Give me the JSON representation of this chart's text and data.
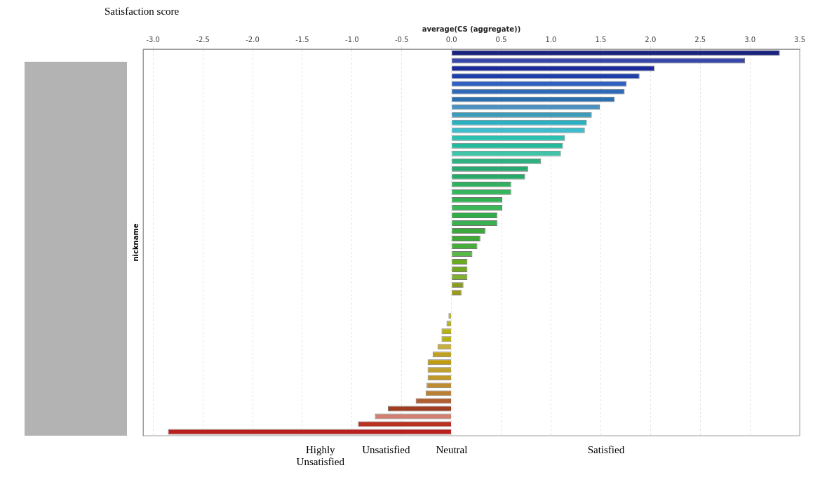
{
  "chart_data": {
    "type": "bar",
    "orientation": "horizontal",
    "title": "Satisfaction score",
    "xlabel": "average(CS (aggregate))",
    "ylabel": "nickname",
    "categories": [
      null,
      null,
      null,
      null,
      null,
      null,
      null,
      null,
      null,
      null,
      null,
      null,
      null,
      null,
      null,
      null,
      null,
      null,
      null,
      null,
      null,
      null,
      null,
      null,
      null,
      null,
      null,
      null,
      null,
      null,
      null,
      null,
      null,
      null,
      null,
      null,
      null,
      null,
      null,
      null,
      null,
      null,
      null,
      null,
      null,
      null,
      null,
      null,
      null,
      null
    ],
    "values": [
      3.3,
      2.95,
      2.04,
      1.89,
      1.76,
      1.74,
      1.64,
      1.49,
      1.41,
      1.36,
      1.34,
      1.14,
      1.12,
      1.1,
      0.9,
      0.77,
      0.74,
      0.6,
      0.6,
      0.51,
      0.51,
      0.46,
      0.46,
      0.34,
      0.29,
      0.26,
      0.21,
      0.16,
      0.16,
      0.16,
      0.12,
      0.1,
      0,
      0,
      -0.03,
      -0.05,
      -0.1,
      -0.1,
      -0.14,
      -0.19,
      -0.24,
      -0.24,
      -0.24,
      -0.25,
      -0.26,
      -0.36,
      -0.64,
      -0.77,
      -0.94,
      -2.85
    ],
    "colors": [
      "#1a237e",
      "#3949ab",
      "#1a2a9a",
      "#1f3fa8",
      "#3060c0",
      "#2f6ab8",
      "#2a70b0",
      "#4a90c0",
      "#3a9cb8",
      "#2ab0c0",
      "#40bccc",
      "#2cc0b0",
      "#22b89a",
      "#40c4a8",
      "#30b080",
      "#2aa870",
      "#28a868",
      "#30b060",
      "#34b45c",
      "#30b050",
      "#3cb858",
      "#30ac48",
      "#38b050",
      "#3aa83c",
      "#40a838",
      "#48ac3c",
      "#5ab848",
      "#6aaa20",
      "#72a820",
      "#80b030",
      "#8a9a20",
      "#9a9a20",
      "#a0a020",
      "#a8a420",
      "#b4b030",
      "#b8b030",
      "#b8b010",
      "#b8b010",
      "#c8b040",
      "#c0a020",
      "#c09a10",
      "#c0a030",
      "#c09828",
      "#c08c30",
      "#b88030",
      "#b06030",
      "#a03c20",
      "#d08070",
      "#b83020",
      "#b82020"
    ],
    "xlim": [
      -3.1,
      3.5
    ],
    "xticks": [
      {
        "value": -3,
        "label": "-3.0"
      },
      {
        "value": -2.5,
        "label": "-2.5"
      },
      {
        "value": -2,
        "label": "-2.0"
      },
      {
        "value": -1.5,
        "label": "-1.5"
      },
      {
        "value": -1,
        "label": "-1.0"
      },
      {
        "value": -0.5,
        "label": "-0.5"
      },
      {
        "value": 0,
        "label": "0.0"
      },
      {
        "value": 0.5,
        "label": "0.5"
      },
      {
        "value": 1,
        "label": "1.0"
      },
      {
        "value": 1.5,
        "label": "1.5"
      },
      {
        "value": 2,
        "label": "2.0"
      },
      {
        "value": 2.5,
        "label": "2.5"
      },
      {
        "value": 3,
        "label": "3.0"
      },
      {
        "value": 3.5,
        "label": "3.5"
      }
    ],
    "grid": "x",
    "legend": false,
    "annotations": [
      "Highly Unsatisfied",
      "Unsatisfied",
      "Neutral",
      "Satisfied"
    ]
  }
}
